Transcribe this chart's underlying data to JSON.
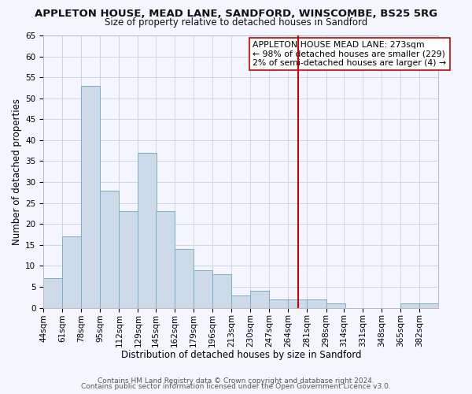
{
  "title": "APPLETON HOUSE, MEAD LANE, SANDFORD, WINSCOMBE, BS25 5RG",
  "subtitle": "Size of property relative to detached houses in Sandford",
  "xlabel": "Distribution of detached houses by size in Sandford",
  "ylabel": "Number of detached properties",
  "bar_color": "#ccdaea",
  "bar_edge_color": "#7aaec8",
  "bins_left": [
    44,
    61,
    78,
    95,
    112,
    129,
    145,
    162,
    179,
    196,
    213,
    230,
    247,
    264,
    281,
    298,
    314,
    331,
    348,
    365,
    382
  ],
  "bin_width": 17,
  "counts": [
    7,
    17,
    53,
    28,
    23,
    37,
    23,
    14,
    9,
    8,
    3,
    4,
    2,
    2,
    2,
    1,
    0,
    0,
    0,
    1,
    1
  ],
  "tick_labels": [
    "44sqm",
    "61sqm",
    "78sqm",
    "95sqm",
    "112sqm",
    "129sqm",
    "145sqm",
    "162sqm",
    "179sqm",
    "196sqm",
    "213sqm",
    "230sqm",
    "247sqm",
    "264sqm",
    "281sqm",
    "298sqm",
    "314sqm",
    "331sqm",
    "348sqm",
    "365sqm",
    "382sqm"
  ],
  "vline_x": 273,
  "vline_color": "#cc0000",
  "annotation_text": "APPLETON HOUSE MEAD LANE: 273sqm\n← 98% of detached houses are smaller (229)\n2% of semi-detached houses are larger (4) →",
  "ylim": [
    0,
    65
  ],
  "yticks": [
    0,
    5,
    10,
    15,
    20,
    25,
    30,
    35,
    40,
    45,
    50,
    55,
    60,
    65
  ],
  "footer1": "Contains HM Land Registry data © Crown copyright and database right 2024.",
  "footer2": "Contains public sector information licensed under the Open Government Licence v3.0.",
  "bg_color": "#f5f5ff",
  "grid_color": "#c8d4e8",
  "title_fontsize": 9.5,
  "subtitle_fontsize": 8.5,
  "xlabel_fontsize": 8.5,
  "ylabel_fontsize": 8.5,
  "tick_fontsize": 7.5,
  "footer_fontsize": 6.5,
  "ann_fontsize": 7.8
}
